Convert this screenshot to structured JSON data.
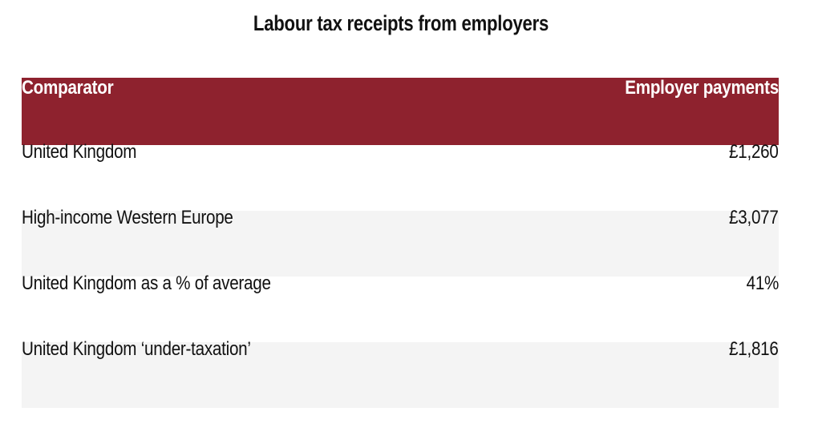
{
  "chart_data": {
    "type": "table",
    "title": "Labour tax receipts from employers",
    "columns": [
      "Comparator",
      "Employer payments"
    ],
    "rows": [
      {
        "comparator": "United Kingdom",
        "value": "£1,260"
      },
      {
        "comparator": "High-income Western Europe",
        "value": "£3,077"
      },
      {
        "comparator": "United Kingdom as a % of average",
        "value": "41%"
      },
      {
        "comparator": "United Kingdom ‘under-taxation’",
        "value": "£1,816"
      }
    ],
    "header_color": "#8e222e",
    "stripe_color": "#f4f4f4"
  }
}
